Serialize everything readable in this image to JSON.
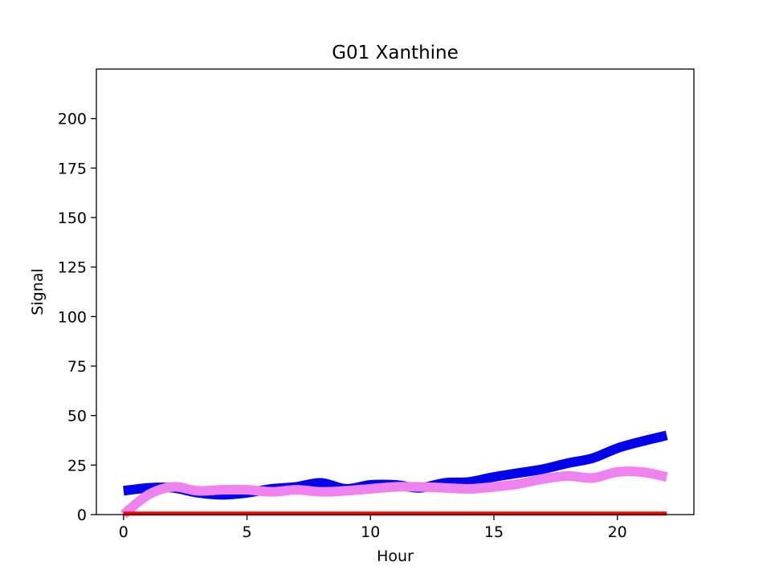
{
  "chart_data": {
    "type": "line",
    "title": "G01 Xanthine",
    "xlabel": "Hour",
    "ylabel": "Signal",
    "xlim": [
      -1.1,
      23.1
    ],
    "ylim": [
      0,
      225
    ],
    "xticks": [
      0,
      5,
      10,
      15,
      20
    ],
    "yticks": [
      0,
      25,
      50,
      75,
      100,
      125,
      150,
      175,
      200
    ],
    "grid": false,
    "legend": "none",
    "x": [
      0,
      1,
      2,
      3,
      4,
      5,
      6,
      7,
      8,
      9,
      10,
      11,
      12,
      13,
      14,
      15,
      16,
      17,
      18,
      19,
      20,
      21,
      22
    ],
    "series": [
      {
        "color": "#0000ee",
        "values": [
          12,
          13.5,
          13.5,
          11,
          10,
          11,
          13,
          14,
          16,
          13,
          15,
          15,
          13.5,
          16,
          16.5,
          19,
          21,
          23,
          26,
          28.5,
          33.5,
          37,
          40
        ]
      },
      {
        "color": "#ee82ee",
        "values": [
          0,
          10,
          14,
          12,
          12.5,
          12.5,
          11.5,
          12.5,
          11.5,
          12,
          13,
          14,
          14,
          13.5,
          13,
          14,
          15.5,
          18,
          19.5,
          18.5,
          21.5,
          21.5,
          19
        ]
      },
      {
        "color": "#ff0000",
        "values": [
          0.5,
          0.5,
          0.5,
          0.5,
          0.5,
          0.5,
          0.5,
          0.5,
          0.5,
          0.5,
          0.5,
          0.5,
          0.5,
          0.5,
          0.5,
          0.5,
          0.5,
          0.5,
          0.5,
          0.5,
          0.5,
          0.5,
          0.5
        ]
      }
    ]
  }
}
